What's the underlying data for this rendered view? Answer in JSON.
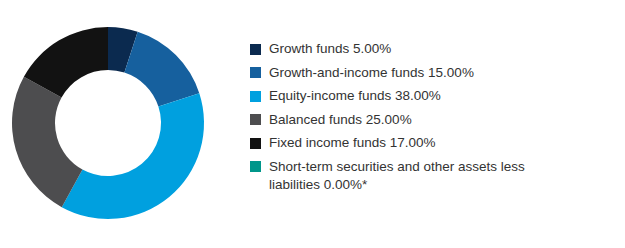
{
  "chart_data": {
    "type": "donut",
    "categories": [
      "Growth funds",
      "Growth-and-income funds",
      "Equity-income funds",
      "Balanced funds",
      "Fixed income funds",
      "Short-term securities and other assets less liabilities"
    ],
    "values": [
      5,
      15,
      38,
      25,
      17,
      0
    ],
    "value_labels": [
      "5.00%",
      "15.00%",
      "38.00%",
      "25.00%",
      "17.00%",
      "0.00%*"
    ],
    "colors": [
      "#0b2a4f",
      "#16609e",
      "#00a0df",
      "#4d4d4f",
      "#121212",
      "#00968a"
    ]
  }
}
